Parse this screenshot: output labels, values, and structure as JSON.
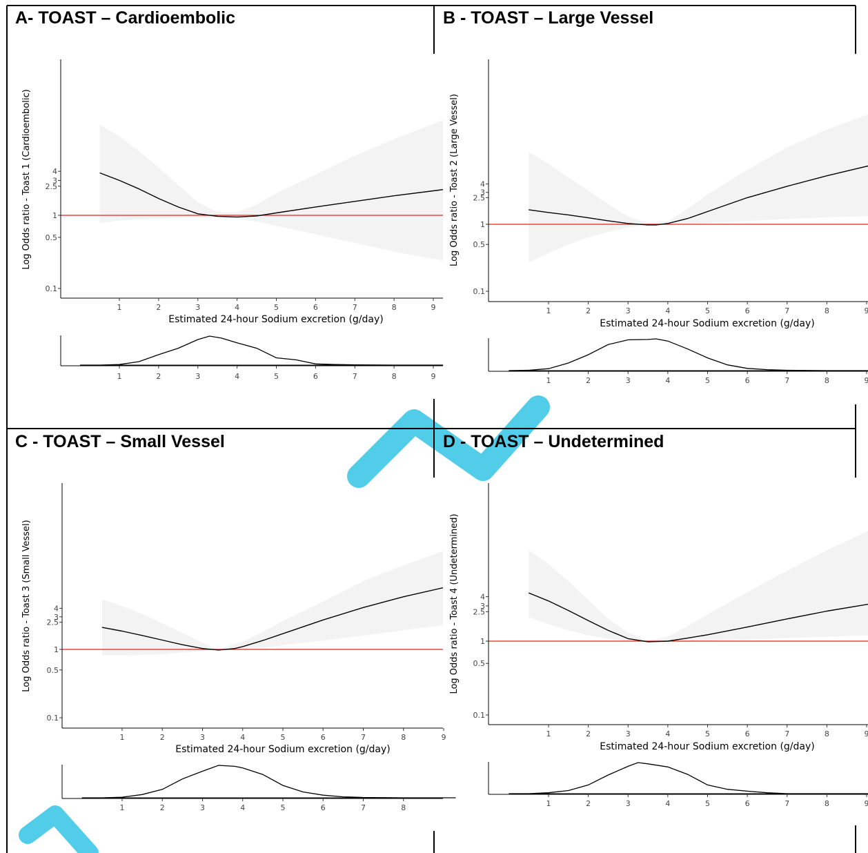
{
  "panels": [
    {
      "title": "A- TOAST – Cardioembolic",
      "ylabel": "Log Odds ratio - Toast 1 (Cardioembolic)",
      "xlabel": "Estimated 24-hour Sodium excretion (g/day)"
    },
    {
      "title": "B - TOAST – Large Vessel",
      "ylabel": "Log Odds ratio - Toast 2 (Large Vessel)",
      "xlabel": "Estimated 24-hour Sodium excretion (g/day)"
    },
    {
      "title": "C - TOAST – Small Vessel",
      "ylabel": "Log Odds ratio - Toast 3 (Small Vessel)",
      "xlabel": "Estimated 24-hour Sodium excretion (g/day)"
    },
    {
      "title": "D - TOAST – Undetermined",
      "ylabel": "Log Odds ratio - Toast 4 (Undetermined)",
      "xlabel": "Estimated 24-hour Sodium excretion (g/day)"
    }
  ],
  "chart_data": [
    {
      "type": "line",
      "title": "A- TOAST – Cardioembolic",
      "xlabel": "Estimated 24-hour Sodium excretion (g/day)",
      "ylabel": "Log Odds ratio - Toast 1 (Cardioembolic)",
      "y_scale": "log",
      "x_ticks": [
        1,
        2,
        3,
        4,
        5,
        6,
        7,
        8,
        9
      ],
      "y_ticks": [
        0.1,
        0.5,
        1,
        2.5,
        3,
        4
      ],
      "reference_line": {
        "y": 1,
        "color": "#e8221b"
      },
      "series": [
        {
          "x": [
            0.5,
            1,
            1.5,
            2,
            2.5,
            3,
            3.5,
            4,
            4.5,
            5,
            6,
            7,
            8,
            9.25
          ],
          "y": [
            3.8,
            3.0,
            2.3,
            1.7,
            1.3,
            1.05,
            0.97,
            0.95,
            0.98,
            1.08,
            1.3,
            1.55,
            1.85,
            2.25
          ]
        }
      ],
      "ci_band": {
        "x": [
          0.5,
          1,
          1.5,
          2,
          2.5,
          3,
          3.5,
          4,
          4.5,
          5,
          6,
          7,
          8,
          9.25
        ],
        "upper": [
          17.5,
          12.0,
          7.5,
          4.5,
          2.6,
          1.5,
          1.1,
          1.1,
          1.4,
          2.0,
          3.6,
          6.5,
          11.0,
          20.0
        ],
        "lower": [
          0.78,
          0.85,
          0.88,
          0.9,
          0.92,
          0.93,
          0.93,
          0.9,
          0.82,
          0.72,
          0.55,
          0.42,
          0.32,
          0.24
        ]
      },
      "density": {
        "x": [
          0,
          0.5,
          1,
          1.5,
          2,
          2.5,
          3,
          3.3,
          3.6,
          4,
          4.5,
          5,
          5.5,
          6,
          6.5,
          7,
          8,
          9.25
        ],
        "y": [
          0,
          0.0,
          0.02,
          0.12,
          0.36,
          0.58,
          0.88,
          1.0,
          0.93,
          0.77,
          0.58,
          0.25,
          0.18,
          0.04,
          0.02,
          0.01,
          0.0,
          0.0
        ]
      }
    },
    {
      "type": "line",
      "title": "B - TOAST – Large Vessel",
      "xlabel": "Estimated 24-hour Sodium excretion (g/day)",
      "ylabel": "Log Odds ratio - Toast 2 (Large Vessel)",
      "y_scale": "log",
      "x_ticks": [
        1,
        2,
        3,
        4,
        5,
        6,
        7,
        8,
        9
      ],
      "y_ticks": [
        0.1,
        0.5,
        1,
        2.5,
        3,
        4
      ],
      "reference_line": {
        "y": 1,
        "color": "#e8221b"
      },
      "series": [
        {
          "x": [
            0.5,
            1,
            1.5,
            2,
            2.5,
            3,
            3.5,
            3.7,
            4,
            4.5,
            5,
            6,
            7,
            8,
            9.1
          ],
          "y": [
            1.65,
            1.5,
            1.38,
            1.25,
            1.13,
            1.03,
            0.98,
            0.98,
            1.03,
            1.22,
            1.55,
            2.5,
            3.7,
            5.3,
            7.6
          ]
        }
      ],
      "ci_band": {
        "x": [
          0.5,
          1,
          1.5,
          2,
          2.5,
          3,
          3.5,
          4,
          4.5,
          5,
          6,
          7,
          8,
          9.1
        ],
        "upper": [
          12.0,
          8.0,
          5.0,
          3.2,
          2.0,
          1.3,
          1.05,
          1.1,
          1.7,
          2.8,
          6.5,
          14.0,
          26.0,
          45.0
        ],
        "lower": [
          0.27,
          0.37,
          0.5,
          0.64,
          0.77,
          0.9,
          0.97,
          0.99,
          1.0,
          1.04,
          1.12,
          1.2,
          1.27,
          1.33
        ]
      },
      "density": {
        "x": [
          0,
          0.5,
          1,
          1.5,
          2,
          2.5,
          3,
          3.5,
          3.7,
          4,
          4.5,
          5,
          5.5,
          6,
          6.5,
          7,
          8,
          9.1
        ],
        "y": [
          0,
          0.01,
          0.06,
          0.24,
          0.5,
          0.82,
          0.97,
          0.98,
          1.0,
          0.93,
          0.68,
          0.4,
          0.18,
          0.07,
          0.03,
          0.01,
          0.0,
          0.0
        ]
      }
    },
    {
      "type": "line",
      "title": "C - TOAST – Small Vessel",
      "xlabel": "Estimated 24-hour Sodium excretion (g/day)",
      "ylabel": "Log Odds ratio - Toast 3 (Small Vessel)",
      "y_scale": "log",
      "x_ticks": [
        1,
        2,
        3,
        4,
        5,
        6,
        7,
        8,
        9
      ],
      "y_ticks": [
        0.1,
        0.5,
        1,
        2.5,
        3,
        4
      ],
      "reference_line": {
        "y": 1,
        "color": "#e8221b"
      },
      "series": [
        {
          "x": [
            0.5,
            1,
            1.5,
            2,
            2.5,
            3,
            3.4,
            3.8,
            4,
            4.5,
            5,
            6,
            7,
            8,
            9.3
          ],
          "y": [
            2.1,
            1.85,
            1.6,
            1.37,
            1.17,
            1.03,
            0.98,
            1.03,
            1.1,
            1.35,
            1.7,
            2.7,
            4.1,
            5.9,
            8.8
          ]
        }
      ],
      "ci_band": {
        "x": [
          0.5,
          1,
          1.5,
          2,
          2.5,
          3,
          3.4,
          4,
          4.5,
          5,
          6,
          7,
          8,
          9.3
        ],
        "upper": [
          5.4,
          4.3,
          3.3,
          2.4,
          1.75,
          1.25,
          1.02,
          1.3,
          1.8,
          2.6,
          5.0,
          10.0,
          17.0,
          32.0
        ],
        "lower": [
          0.82,
          0.82,
          0.83,
          0.85,
          0.9,
          0.95,
          0.98,
          1.0,
          1.05,
          1.15,
          1.35,
          1.6,
          1.9,
          2.4
        ]
      },
      "density": {
        "x": [
          0,
          0.5,
          1,
          1.5,
          2,
          2.5,
          3,
          3.4,
          3.8,
          4,
          4.5,
          5,
          5.5,
          6,
          6.5,
          7,
          8,
          9.3
        ],
        "y": [
          0,
          0.0,
          0.02,
          0.1,
          0.26,
          0.58,
          0.82,
          1.0,
          0.97,
          0.92,
          0.72,
          0.38,
          0.18,
          0.08,
          0.03,
          0.01,
          0.0,
          0.0
        ]
      }
    },
    {
      "type": "line",
      "title": "D - TOAST – Undetermined",
      "xlabel": "Estimated 24-hour Sodium excretion (g/day)",
      "ylabel": "Log Odds ratio - Toast 4 (Undetermined)",
      "y_scale": "log",
      "x_ticks": [
        1,
        2,
        3,
        4,
        5,
        6,
        7,
        8,
        9
      ],
      "y_ticks": [
        0.1,
        0.5,
        1,
        2.5,
        3,
        4
      ],
      "reference_line": {
        "y": 1,
        "color": "#e8221b"
      },
      "series": [
        {
          "x": [
            0.5,
            1,
            1.5,
            2,
            2.5,
            3,
            3.5,
            4,
            4.5,
            5,
            6,
            7,
            8,
            9.1
          ],
          "y": [
            4.5,
            3.5,
            2.6,
            1.9,
            1.4,
            1.08,
            0.98,
            1.0,
            1.1,
            1.22,
            1.55,
            2.0,
            2.55,
            3.2
          ]
        }
      ],
      "ci_band": {
        "x": [
          0.5,
          1,
          1.5,
          2,
          2.5,
          3,
          3.5,
          4,
          4.5,
          5,
          6,
          7,
          8,
          9.1
        ],
        "upper": [
          17.0,
          11.0,
          6.5,
          3.6,
          2.0,
          1.3,
          1.02,
          1.15,
          1.6,
          2.3,
          4.6,
          9.0,
          17.0,
          32.0
        ],
        "lower": [
          2.1,
          1.7,
          1.4,
          1.2,
          1.07,
          1.0,
          0.96,
          0.95,
          0.97,
          1.0,
          1.05,
          1.1,
          1.15,
          1.2
        ]
      },
      "density": {
        "x": [
          0,
          0.5,
          1,
          1.5,
          2,
          2.5,
          3,
          3.25,
          3.5,
          4,
          4.5,
          5,
          5.5,
          6,
          6.5,
          7,
          8,
          9.1
        ],
        "y": [
          0,
          0.0,
          0.03,
          0.1,
          0.28,
          0.6,
          0.88,
          1.0,
          0.96,
          0.86,
          0.62,
          0.28,
          0.14,
          0.08,
          0.03,
          0.0,
          0.0,
          0.0
        ]
      }
    }
  ]
}
